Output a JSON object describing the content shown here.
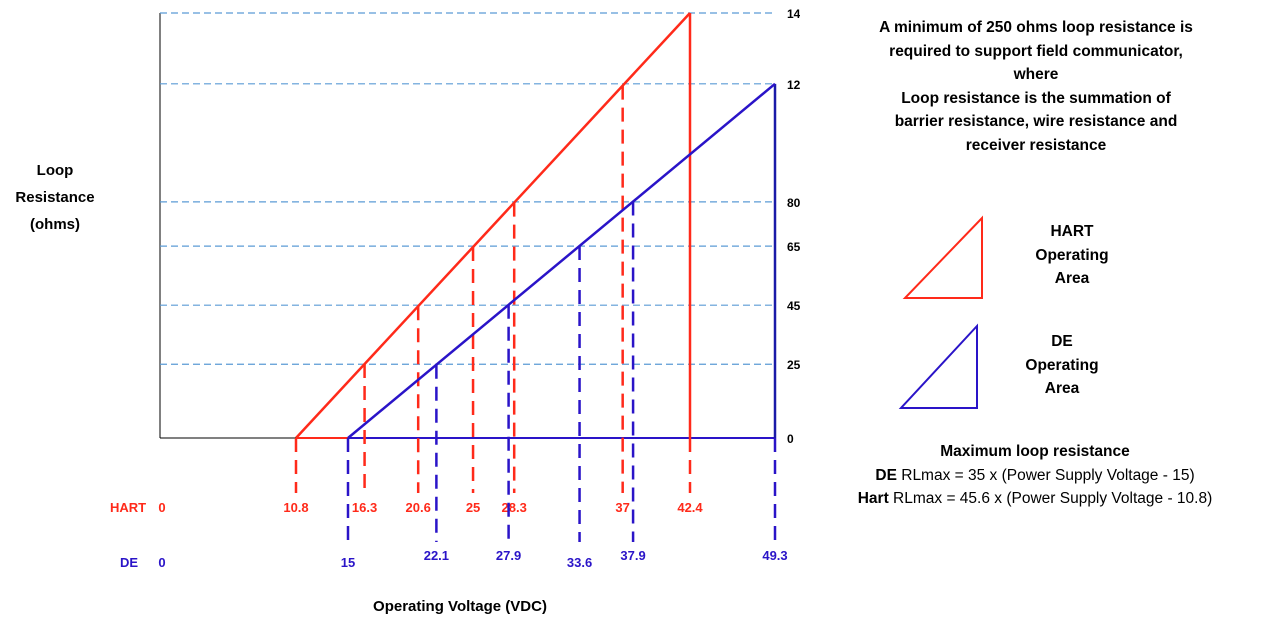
{
  "chart_data": {
    "type": "line",
    "ylabel": [
      "Loop",
      "Resistance",
      "(ohms)"
    ],
    "xlabel": "Operating Voltage (VDC)",
    "y_ticks": [
      0,
      250,
      450,
      650,
      800,
      1200,
      1440
    ],
    "ylim": [
      0,
      1440
    ],
    "grid": "horizontal dashed at y ticks",
    "series": [
      {
        "name": "HART",
        "color": "#ff2a1a",
        "row_label": "HART",
        "row_origin": "0",
        "points": [
          [
            10.8,
            0
          ],
          [
            42.4,
            1440
          ]
        ],
        "x_ticks": [
          10.8,
          16.3,
          20.6,
          25,
          28.3,
          37,
          42.4
        ],
        "x_tick_labels": [
          "10.8",
          "16.3",
          "20.6",
          "25",
          "28.3",
          "37",
          "42.4"
        ]
      },
      {
        "name": "DE",
        "color": "#2a14c8",
        "row_label": "DE",
        "row_origin": "0",
        "points": [
          [
            15,
            0
          ],
          [
            49.3,
            1200
          ]
        ],
        "x_ticks": [
          15,
          22.1,
          27.9,
          33.6,
          37.9,
          49.3
        ],
        "x_tick_labels": [
          "15",
          "22.1",
          "27.9",
          "33.6",
          "37.9",
          "49.3"
        ]
      }
    ]
  },
  "note_lines": [
    "A minimum of 250 ohms loop resistance is",
    "required to support field communicator,",
    "where",
    "Loop resistance is the summation of",
    "barrier resistance, wire resistance and",
    "receiver resistance"
  ],
  "legend": [
    {
      "lines": [
        "HART",
        "Operating",
        "Area"
      ],
      "color": "#ff2a1a"
    },
    {
      "lines": [
        "DE",
        "Operating",
        "Area"
      ],
      "color": "#2a14c8"
    }
  ],
  "formulas": {
    "heading": "Maximum loop resistance",
    "de_prefix": "DE",
    "de_text": " RLmax = 35 x (Power Supply Voltage - 15)",
    "hart_prefix": "Hart",
    "hart_text": " RLmax = 45.6 x (Power Supply Voltage - 10.8)"
  }
}
